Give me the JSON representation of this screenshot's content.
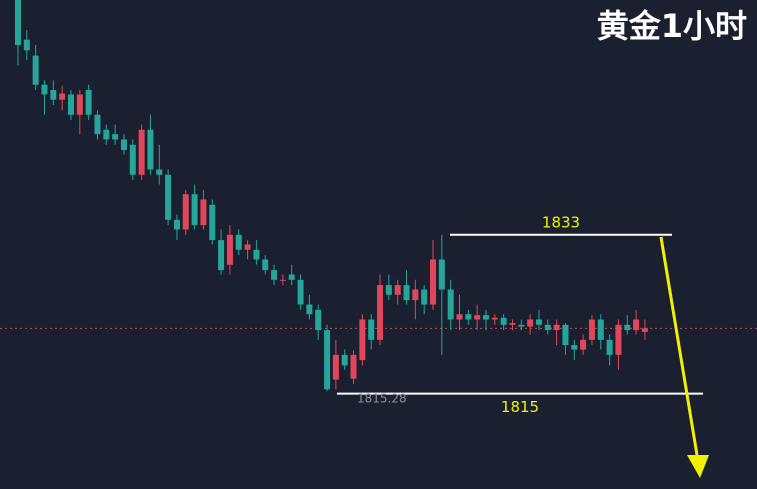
{
  "chart_data": {
    "type": "candlestick",
    "title": "黄金1小时",
    "up_color": "#e0475a",
    "down_color": "#26a69a",
    "ylim": [
      1804.2,
      1859.6
    ],
    "ohlc": [
      [
        1859.6,
        1859.6,
        1852.2,
        1854.5
      ],
      [
        1855.1,
        1856.2,
        1852.8,
        1853.9
      ],
      [
        1853.3,
        1854.5,
        1849.4,
        1850.0
      ],
      [
        1850.0,
        1850.5,
        1846.6,
        1848.9
      ],
      [
        1849.4,
        1850.5,
        1847.7,
        1848.3
      ],
      [
        1848.3,
        1849.9,
        1847.1,
        1849.0
      ],
      [
        1848.9,
        1849.4,
        1846.0,
        1846.6
      ],
      [
        1846.6,
        1849.4,
        1844.4,
        1848.9
      ],
      [
        1849.4,
        1850.0,
        1846.0,
        1846.6
      ],
      [
        1846.6,
        1847.1,
        1843.8,
        1844.4
      ],
      [
        1844.9,
        1845.5,
        1843.2,
        1843.8
      ],
      [
        1844.4,
        1845.5,
        1843.2,
        1843.8
      ],
      [
        1843.8,
        1844.4,
        1842.1,
        1842.6
      ],
      [
        1843.2,
        1843.8,
        1839.2,
        1839.8
      ],
      [
        1839.8,
        1845.5,
        1839.2,
        1844.9
      ],
      [
        1844.9,
        1846.6,
        1839.8,
        1840.4
      ],
      [
        1840.4,
        1843.2,
        1838.7,
        1839.8
      ],
      [
        1839.8,
        1840.4,
        1834.1,
        1834.7
      ],
      [
        1834.7,
        1835.3,
        1832.4,
        1833.6
      ],
      [
        1833.6,
        1838.1,
        1833.0,
        1837.6
      ],
      [
        1837.6,
        1838.7,
        1833.6,
        1834.1
      ],
      [
        1834.1,
        1838.1,
        1833.6,
        1837.0
      ],
      [
        1836.4,
        1837.0,
        1831.9,
        1832.4
      ],
      [
        1832.4,
        1833.6,
        1828.5,
        1829.0
      ],
      [
        1829.6,
        1834.1,
        1828.5,
        1833.0
      ],
      [
        1833.0,
        1833.6,
        1830.7,
        1831.3
      ],
      [
        1831.3,
        1832.4,
        1830.2,
        1831.9
      ],
      [
        1831.3,
        1832.4,
        1829.6,
        1830.2
      ],
      [
        1830.2,
        1830.7,
        1828.5,
        1829.0
      ],
      [
        1829.0,
        1829.6,
        1827.3,
        1827.9
      ],
      [
        1827.9,
        1828.5,
        1827.3,
        1827.9
      ],
      [
        1828.5,
        1829.6,
        1827.3,
        1827.9
      ],
      [
        1827.9,
        1828.5,
        1824.5,
        1825.1
      ],
      [
        1825.1,
        1826.2,
        1823.4,
        1824.0
      ],
      [
        1824.5,
        1825.1,
        1821.1,
        1822.2
      ],
      [
        1822.2,
        1822.8,
        1815.28,
        1815.5
      ],
      [
        1816.6,
        1821.1,
        1815.5,
        1819.4
      ],
      [
        1819.4,
        1820.0,
        1817.7,
        1818.2
      ],
      [
        1816.7,
        1819.9,
        1816.1,
        1819.4
      ],
      [
        1818.8,
        1824.0,
        1818.2,
        1823.4
      ],
      [
        1823.4,
        1824.0,
        1820.0,
        1821.1
      ],
      [
        1821.1,
        1828.5,
        1820.5,
        1827.3
      ],
      [
        1827.3,
        1828.5,
        1825.6,
        1826.2
      ],
      [
        1826.2,
        1827.9,
        1825.1,
        1827.3
      ],
      [
        1827.3,
        1829.0,
        1825.1,
        1825.6
      ],
      [
        1825.6,
        1827.9,
        1823.4,
        1826.8
      ],
      [
        1826.8,
        1827.3,
        1824.0,
        1825.1
      ],
      [
        1825.1,
        1832.4,
        1824.5,
        1830.2
      ],
      [
        1830.2,
        1833.0,
        1819.4,
        1826.8
      ],
      [
        1826.8,
        1827.9,
        1822.2,
        1823.4
      ],
      [
        1823.4,
        1826.2,
        1822.2,
        1824.0
      ],
      [
        1824.0,
        1824.5,
        1822.8,
        1823.4
      ],
      [
        1823.4,
        1825.1,
        1822.2,
        1823.9
      ],
      [
        1823.9,
        1824.5,
        1822.2,
        1823.4
      ],
      [
        1823.4,
        1824.0,
        1822.8,
        1823.6
      ],
      [
        1823.6,
        1824.0,
        1822.2,
        1822.8
      ],
      [
        1822.8,
        1823.4,
        1822.2,
        1823.0
      ],
      [
        1822.8,
        1823.4,
        1822.2,
        1822.6
      ],
      [
        1822.6,
        1824.0,
        1821.7,
        1823.4
      ],
      [
        1823.4,
        1824.5,
        1822.2,
        1822.8
      ],
      [
        1822.8,
        1823.4,
        1821.7,
        1822.2
      ],
      [
        1822.2,
        1823.4,
        1820.5,
        1822.8
      ],
      [
        1822.8,
        1823.0,
        1819.4,
        1820.5
      ],
      [
        1820.5,
        1821.1,
        1818.8,
        1820.0
      ],
      [
        1820.0,
        1821.7,
        1819.4,
        1821.1
      ],
      [
        1821.1,
        1823.9,
        1820.5,
        1823.4
      ],
      [
        1823.4,
        1824.0,
        1820.0,
        1821.1
      ],
      [
        1821.1,
        1821.7,
        1818.2,
        1819.4
      ],
      [
        1819.4,
        1823.4,
        1817.7,
        1822.8
      ],
      [
        1822.8,
        1823.9,
        1821.7,
        1822.2
      ],
      [
        1822.2,
        1824.5,
        1821.7,
        1823.4
      ],
      [
        1822.0,
        1823.4,
        1821.1,
        1822.4
      ]
    ],
    "levels": [
      1833,
      1815
    ],
    "low_label": 1815.28
  }
}
